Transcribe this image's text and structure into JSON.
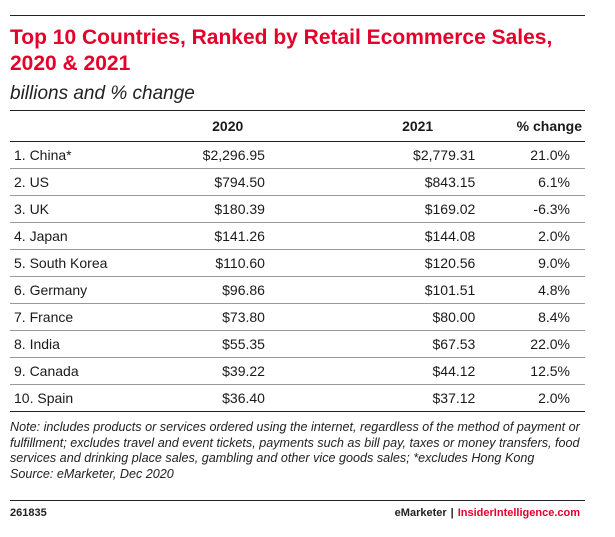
{
  "chart_data": {
    "type": "table",
    "title": "Top 10 Countries, Ranked by Retail Ecommerce Sales, 2020 & 2021",
    "subtitle": "billions and % change",
    "columns": [
      "",
      "2020",
      "2021",
      "% change"
    ],
    "rows": [
      {
        "country": "1. China*",
        "y2020": "$2,296.95",
        "y2021": "$2,779.31",
        "change": "21.0%"
      },
      {
        "country": "2. US",
        "y2020": "$794.50",
        "y2021": "$843.15",
        "change": "6.1%"
      },
      {
        "country": "3. UK",
        "y2020": "$180.39",
        "y2021": "$169.02",
        "change": "-6.3%"
      },
      {
        "country": "4. Japan",
        "y2020": "$141.26",
        "y2021": "$144.08",
        "change": "2.0%"
      },
      {
        "country": "5. South Korea",
        "y2020": "$110.60",
        "y2021": "$120.56",
        "change": "9.0%"
      },
      {
        "country": "6. Germany",
        "y2020": "$96.86",
        "y2021": "$101.51",
        "change": "4.8%"
      },
      {
        "country": "7. France",
        "y2020": "$73.80",
        "y2021": "$80.00",
        "change": "8.4%"
      },
      {
        "country": "8. India",
        "y2020": "$55.35",
        "y2021": "$67.53",
        "change": "22.0%"
      },
      {
        "country": "9. Canada",
        "y2020": "$39.22",
        "y2021": "$44.12",
        "change": "12.5%"
      },
      {
        "country": "10. Spain",
        "y2020": "$36.40",
        "y2021": "$37.12",
        "change": "2.0%"
      }
    ],
    "values_2020": [
      2296.95,
      794.5,
      180.39,
      141.26,
      110.6,
      96.86,
      73.8,
      55.35,
      39.22,
      36.4
    ],
    "values_2021": [
      2779.31,
      843.15,
      169.02,
      144.08,
      120.56,
      101.51,
      80.0,
      67.53,
      44.12,
      37.12
    ],
    "pct_change": [
      21.0,
      6.1,
      -6.3,
      2.0,
      9.0,
      4.8,
      8.4,
      22.0,
      12.5,
      2.0
    ]
  },
  "footer": {
    "note": "Note: includes products or services ordered using the internet, regardless of the method of payment or fulfillment; excludes travel and event tickets, payments such as bill pay, taxes or money transfers, food services and drinking place sales, gambling and other vice goods sales; *excludes Hong Kong",
    "source": "Source: eMarketer, Dec 2020",
    "chart_id": "261835",
    "brand_left": "eMarketer",
    "separator": "|",
    "brand_right": "InsiderIntelligence.com"
  },
  "colors": {
    "accent": "#e4002b",
    "text": "#1a1a1a",
    "rule": "#222222",
    "row_divider": "#9a9a9a"
  }
}
